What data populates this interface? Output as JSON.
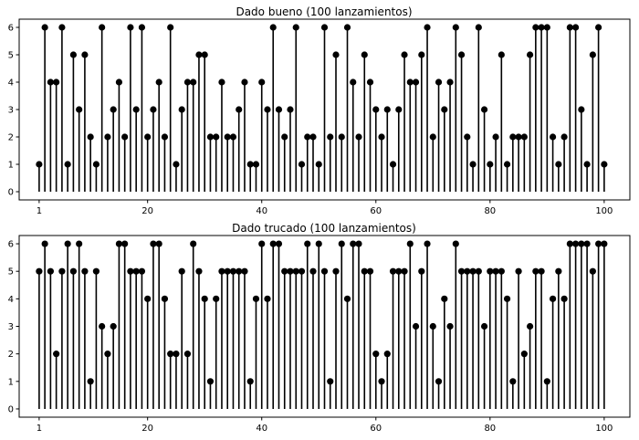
{
  "chart_data": [
    {
      "type": "stem",
      "title": "Dado bueno (100 lanzamientos)",
      "xlabel": "",
      "ylabel": "",
      "xticks": [
        1,
        20,
        40,
        60,
        80,
        100
      ],
      "yticks": [
        0,
        1,
        2,
        3,
        4,
        5,
        6
      ],
      "xlim": [
        -2.5,
        104.5
      ],
      "ylim": [
        -0.3,
        6.3
      ],
      "grid": false,
      "x_start": 1,
      "values": [
        1,
        6,
        4,
        4,
        6,
        1,
        5,
        3,
        5,
        2,
        1,
        6,
        2,
        3,
        4,
        2,
        6,
        3,
        6,
        2,
        3,
        4,
        2,
        6,
        1,
        3,
        4,
        4,
        5,
        5,
        2,
        2,
        4,
        2,
        2,
        3,
        4,
        1,
        1,
        4,
        3,
        6,
        3,
        2,
        3,
        6,
        1,
        2,
        2,
        1,
        6,
        2,
        5,
        2,
        6,
        4,
        2,
        5,
        4,
        3,
        2,
        3,
        1,
        3,
        5,
        4,
        4,
        5,
        6,
        2,
        4,
        3,
        4,
        6,
        5,
        2,
        1,
        6,
        3,
        1,
        2,
        5,
        1,
        2,
        2,
        2,
        5,
        6,
        6,
        6,
        2,
        1,
        2,
        6,
        6,
        3,
        1,
        5,
        6,
        1
      ]
    },
    {
      "type": "stem",
      "title": "Dado trucado (100 lanzamientos)",
      "xlabel": "",
      "ylabel": "",
      "xticks": [
        1,
        20,
        40,
        60,
        80,
        100
      ],
      "yticks": [
        0,
        1,
        2,
        3,
        4,
        5,
        6
      ],
      "xlim": [
        -2.5,
        104.5
      ],
      "ylim": [
        -0.3,
        6.3
      ],
      "grid": false,
      "x_start": 1,
      "values": [
        5,
        6,
        5,
        2,
        5,
        6,
        5,
        6,
        5,
        1,
        5,
        3,
        2,
        3,
        6,
        6,
        5,
        5,
        5,
        4,
        6,
        6,
        4,
        2,
        2,
        5,
        2,
        6,
        5,
        4,
        1,
        4,
        5,
        5,
        5,
        5,
        5,
        1,
        4,
        6,
        4,
        6,
        6,
        5,
        5,
        5,
        5,
        6,
        5,
        6,
        5,
        1,
        5,
        6,
        4,
        6,
        6,
        5,
        5,
        2,
        1,
        2,
        5,
        5,
        5,
        6,
        3,
        5,
        6,
        3,
        1,
        4,
        3,
        6,
        5,
        5,
        5,
        5,
        3,
        5,
        5,
        5,
        4,
        1,
        5,
        2,
        3,
        5,
        5,
        1,
        4,
        5,
        4,
        6,
        6,
        6,
        6,
        5,
        6,
        6
      ]
    }
  ]
}
